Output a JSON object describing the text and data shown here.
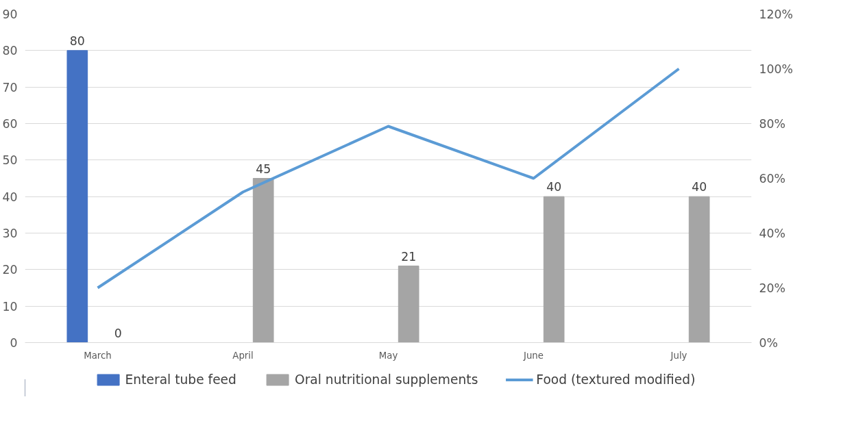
{
  "chart_data": {
    "type": "bar",
    "categories": [
      "March",
      "April",
      "May",
      "June",
      "July"
    ],
    "series": [
      {
        "name": "Enteral tube feed",
        "color": "#4472c4",
        "values": [
          80,
          null,
          null,
          null,
          null
        ],
        "value_labels": [
          "80",
          null,
          null,
          null,
          null
        ]
      },
      {
        "name": "Oral nutritional supplements",
        "color": "#a5a5a5",
        "values": [
          0,
          45,
          21,
          40,
          40
        ],
        "value_labels": [
          "0",
          "45",
          "21",
          "40",
          "40"
        ]
      },
      {
        "name": "Food (textured modified)",
        "type": "line",
        "axis": "y2",
        "color": "#5b9bd5",
        "values": [
          20,
          55,
          79,
          60,
          100
        ]
      }
    ],
    "ylim": [
      0,
      90
    ],
    "yticks": [
      0,
      10,
      20,
      30,
      40,
      50,
      60,
      70,
      80,
      90
    ],
    "y2lim": [
      0,
      120
    ],
    "y2ticks": [
      {
        "value": 0,
        "label": "0%"
      },
      {
        "value": 20,
        "label": "20%"
      },
      {
        "value": 40,
        "label": "40%"
      },
      {
        "value": 60,
        "label": "60%"
      },
      {
        "value": 80,
        "label": "80%"
      },
      {
        "value": 100,
        "label": "100%"
      },
      {
        "value": 120,
        "label": "120%"
      }
    ],
    "grid": "y",
    "legend": "bottom"
  }
}
